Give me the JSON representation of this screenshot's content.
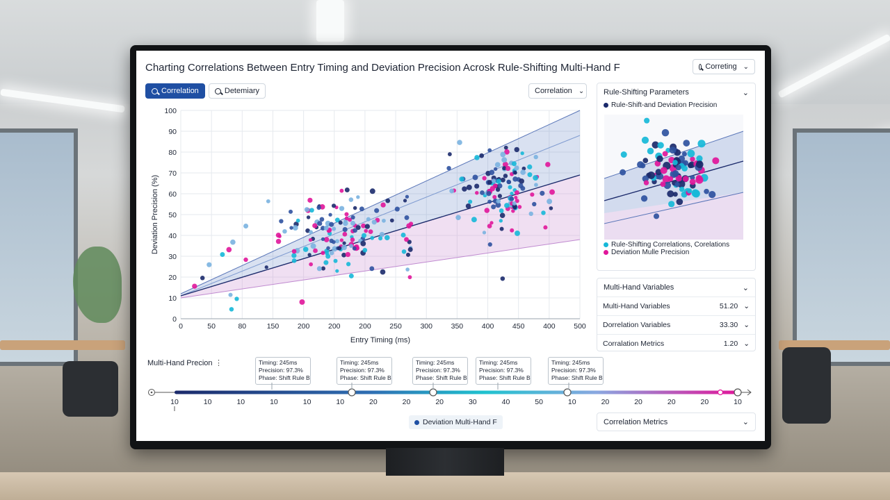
{
  "header": {
    "title": "Charting Correlations Between Entry Timing and Deviation Precision Acrosk Rule-Shifting Multi-Hand F",
    "search_label": "Correting"
  },
  "toolbar": {
    "tab_correlation": "Correlation",
    "tab_determinary": "Detemiary",
    "dropdown_label": "Correlation"
  },
  "chart_data": {
    "type": "scatter",
    "xlabel": "Entry Timing (ms)",
    "ylabel": "Deviation Precision (%)",
    "x_tick_labels": [
      "0",
      "50",
      "80",
      "150",
      "200",
      "200",
      "200",
      "250",
      "300",
      "350",
      "400",
      "450",
      "400",
      "500"
    ],
    "y_ticks": [
      0,
      10,
      20,
      30,
      40,
      50,
      60,
      70,
      80,
      90,
      100
    ],
    "ylim": [
      0,
      100
    ],
    "grid": true,
    "colors": [
      "#1b2a6b",
      "#2f52a0",
      "#16b8d8",
      "#e0169a",
      "#7ab3e0"
    ],
    "trend_line": {
      "x": [
        0,
        500
      ],
      "y": [
        11,
        69
      ]
    },
    "band_upper": {
      "x": [
        0,
        500
      ],
      "y": [
        12,
        100
      ]
    },
    "band_lower": {
      "x": [
        0,
        500
      ],
      "y": [
        10,
        38
      ]
    },
    "clusters": [
      {
        "x": 200,
        "y": 41,
        "sx": 48,
        "sy": 9,
        "n": 150
      },
      {
        "x": 405,
        "y": 62,
        "sx": 30,
        "sy": 10,
        "n": 130
      },
      {
        "x": 60,
        "y": 23,
        "sx": 40,
        "sy": 9,
        "n": 14
      }
    ]
  },
  "right_panel": {
    "params_title": "Rule-Shifting Parameters",
    "legend_top": "Rule-Shift-and Deviation Precision",
    "legend_bottom_1": "Rule-Shifting Correlations, Corelations",
    "legend_bottom_2": "Deviation Mulle Precision",
    "vars_title": "Multi-Hand Variables",
    "rows": [
      {
        "label": "Multi-Hand Variables",
        "value": "51.20"
      },
      {
        "label": "Dorrelation Variables",
        "value": "33.30"
      },
      {
        "label": "Corralation Metrics",
        "value": "1.20"
      }
    ],
    "metrics_label": "Correlation Metrics"
  },
  "timeline": {
    "title": "Multi-Hand Precion",
    "tick_labels": [
      "10",
      "10",
      "10",
      "10",
      "10",
      "10",
      "20",
      "20",
      "20",
      "30",
      "40",
      "50",
      "10",
      "20",
      "20",
      "20",
      "20",
      "10"
    ],
    "tooltips": [
      {
        "l1": "Timing: 245ms",
        "l2": "Precision: 97.3%",
        "l3": "Phase: Shift Rule B"
      },
      {
        "l1": "Timing: 245ms",
        "l2": "Precision: 97.3%",
        "l3": "Phase: Shift Rule B"
      },
      {
        "l1": "Timing: 245ms",
        "l2": "Precision: 97.3%",
        "l3": "Phase: Shift Rule B"
      },
      {
        "l1": "Timing: 245ms",
        "l2": "Precision: 97.3%",
        "l3": "Phase: Shift Rule B"
      },
      {
        "l1": "Timing: 245ms",
        "l2": "Precision: 97.3%",
        "l3": "Phase: Shift Rule B"
      }
    ],
    "legend": "Deviation Multi-Hand F"
  }
}
